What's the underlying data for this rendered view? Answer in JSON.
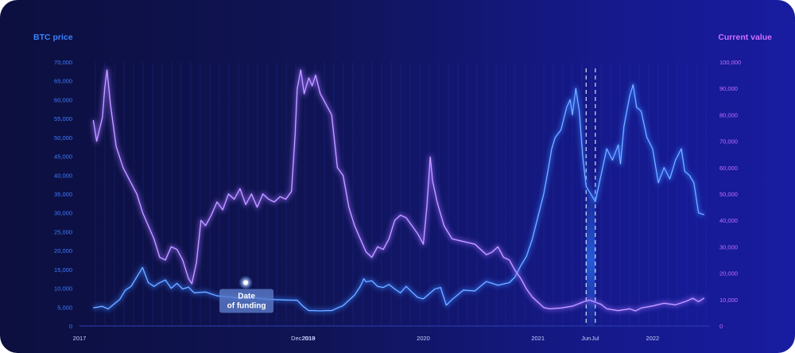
{
  "chart_data": {
    "type": "line",
    "left_axis": {
      "title": "BTC price",
      "ticks": [
        "0",
        "5,000",
        "10,000",
        "15,000",
        "20,000",
        "25,000",
        "30,000",
        "35,000",
        "40,000",
        "45,000",
        "50,000",
        "55,000",
        "60,000",
        "65,000",
        "70,000"
      ],
      "range": [
        0,
        70000
      ]
    },
    "right_axis": {
      "title": "Current value",
      "ticks": [
        "0",
        "10,000",
        "20,000",
        "30,000",
        "40,000",
        "50,000",
        "60,000",
        "70,000",
        "80,000",
        "90,000",
        "100,000"
      ],
      "range": [
        0,
        100000
      ]
    },
    "x_labels": [
      "2017",
      "Dec2018",
      "2019",
      "2020",
      "2021",
      "Jun",
      "Jul",
      "2022"
    ],
    "x_label_positions": [
      2017.0,
      2018.95,
      2019.0,
      2020.0,
      2021.0,
      2021.42,
      2021.5,
      2022.0
    ],
    "x_range": [
      2017.0,
      2022.5
    ],
    "annotation": {
      "label_line1": "Date",
      "label_line2": "of funding",
      "x": 2018.45,
      "y_btc": 11500
    },
    "highlight": {
      "from": 2021.42,
      "to": 2021.5
    },
    "series": [
      {
        "axis": "left",
        "color": "#3a83ff",
        "points": [
          [
            2017.12,
            4800
          ],
          [
            2017.2,
            5200
          ],
          [
            2017.25,
            4500
          ],
          [
            2017.3,
            5800
          ],
          [
            2017.35,
            7000
          ],
          [
            2017.4,
            9500
          ],
          [
            2017.45,
            10500
          ],
          [
            2017.5,
            13000
          ],
          [
            2017.55,
            15500
          ],
          [
            2017.6,
            11500
          ],
          [
            2017.65,
            10500
          ],
          [
            2017.7,
            11500
          ],
          [
            2017.75,
            12200
          ],
          [
            2017.8,
            10000
          ],
          [
            2017.85,
            11300
          ],
          [
            2017.9,
            9800
          ],
          [
            2017.95,
            10300
          ],
          [
            2018.0,
            8800
          ],
          [
            2018.1,
            9000
          ],
          [
            2018.2,
            8000
          ],
          [
            2018.3,
            7700
          ],
          [
            2018.4,
            7400
          ],
          [
            2018.5,
            7600
          ],
          [
            2018.6,
            7200
          ],
          [
            2018.7,
            7000
          ],
          [
            2018.8,
            6900
          ],
          [
            2018.9,
            6800
          ],
          [
            2018.95,
            5200
          ],
          [
            2019.0,
            4100
          ],
          [
            2019.1,
            4000
          ],
          [
            2019.2,
            4100
          ],
          [
            2019.3,
            5400
          ],
          [
            2019.4,
            8200
          ],
          [
            2019.45,
            10500
          ],
          [
            2019.48,
            12500
          ],
          [
            2019.5,
            11700
          ],
          [
            2019.55,
            12000
          ],
          [
            2019.6,
            10500
          ],
          [
            2019.65,
            10200
          ],
          [
            2019.7,
            11000
          ],
          [
            2019.75,
            9800
          ],
          [
            2019.8,
            8800
          ],
          [
            2019.85,
            10500
          ],
          [
            2019.9,
            9000
          ],
          [
            2019.95,
            7600
          ],
          [
            2020.0,
            7200
          ],
          [
            2020.1,
            9800
          ],
          [
            2020.15,
            10200
          ],
          [
            2020.2,
            5500
          ],
          [
            2020.25,
            7000
          ],
          [
            2020.35,
            9500
          ],
          [
            2020.45,
            9300
          ],
          [
            2020.55,
            11800
          ],
          [
            2020.65,
            10800
          ],
          [
            2020.75,
            11500
          ],
          [
            2020.8,
            13000
          ],
          [
            2020.85,
            16000
          ],
          [
            2020.9,
            18500
          ],
          [
            2020.95,
            23000
          ],
          [
            2021.0,
            29000
          ],
          [
            2021.05,
            35000
          ],
          [
            2021.08,
            40000
          ],
          [
            2021.12,
            47000
          ],
          [
            2021.15,
            50000
          ],
          [
            2021.2,
            52000
          ],
          [
            2021.25,
            58000
          ],
          [
            2021.28,
            60000
          ],
          [
            2021.3,
            56000
          ],
          [
            2021.33,
            63000
          ],
          [
            2021.36,
            57000
          ],
          [
            2021.39,
            45000
          ],
          [
            2021.42,
            37000
          ],
          [
            2021.46,
            35000
          ],
          [
            2021.5,
            33000
          ],
          [
            2021.55,
            40000
          ],
          [
            2021.6,
            47000
          ],
          [
            2021.65,
            44000
          ],
          [
            2021.7,
            48000
          ],
          [
            2021.72,
            43000
          ],
          [
            2021.75,
            53000
          ],
          [
            2021.8,
            61000
          ],
          [
            2021.83,
            64000
          ],
          [
            2021.86,
            58000
          ],
          [
            2021.9,
            57000
          ],
          [
            2021.95,
            50000
          ],
          [
            2022.0,
            47000
          ],
          [
            2022.05,
            38000
          ],
          [
            2022.1,
            42000
          ],
          [
            2022.15,
            39000
          ],
          [
            2022.2,
            44000
          ],
          [
            2022.25,
            47000
          ],
          [
            2022.28,
            41000
          ],
          [
            2022.32,
            40000
          ],
          [
            2022.36,
            38000
          ],
          [
            2022.4,
            30000
          ],
          [
            2022.45,
            29500
          ]
        ]
      },
      {
        "axis": "right",
        "color": "#a070ff",
        "points": [
          [
            2017.12,
            78000
          ],
          [
            2017.15,
            70000
          ],
          [
            2017.2,
            79000
          ],
          [
            2017.22,
            90000
          ],
          [
            2017.24,
            97000
          ],
          [
            2017.27,
            84000
          ],
          [
            2017.32,
            68000
          ],
          [
            2017.38,
            60000
          ],
          [
            2017.44,
            55000
          ],
          [
            2017.5,
            50000
          ],
          [
            2017.55,
            43000
          ],
          [
            2017.6,
            38000
          ],
          [
            2017.65,
            33000
          ],
          [
            2017.7,
            26000
          ],
          [
            2017.75,
            25000
          ],
          [
            2017.8,
            30000
          ],
          [
            2017.85,
            29000
          ],
          [
            2017.9,
            25000
          ],
          [
            2017.95,
            18000
          ],
          [
            2017.98,
            16000
          ],
          [
            2018.02,
            24000
          ],
          [
            2018.06,
            40000
          ],
          [
            2018.1,
            38000
          ],
          [
            2018.15,
            42000
          ],
          [
            2018.2,
            47000
          ],
          [
            2018.25,
            44000
          ],
          [
            2018.3,
            50000
          ],
          [
            2018.35,
            48000
          ],
          [
            2018.4,
            52000
          ],
          [
            2018.45,
            46000
          ],
          [
            2018.5,
            50000
          ],
          [
            2018.55,
            45000
          ],
          [
            2018.6,
            50000
          ],
          [
            2018.65,
            48000
          ],
          [
            2018.7,
            47000
          ],
          [
            2018.75,
            49000
          ],
          [
            2018.8,
            48000
          ],
          [
            2018.85,
            51000
          ],
          [
            2018.88,
            72000
          ],
          [
            2018.9,
            90000
          ],
          [
            2018.93,
            97000
          ],
          [
            2018.96,
            88000
          ],
          [
            2019.0,
            94000
          ],
          [
            2019.03,
            91000
          ],
          [
            2019.06,
            95000
          ],
          [
            2019.1,
            88000
          ],
          [
            2019.15,
            84000
          ],
          [
            2019.2,
            80000
          ],
          [
            2019.25,
            60000
          ],
          [
            2019.3,
            57000
          ],
          [
            2019.35,
            45000
          ],
          [
            2019.4,
            38000
          ],
          [
            2019.45,
            33000
          ],
          [
            2019.5,
            28000
          ],
          [
            2019.55,
            26000
          ],
          [
            2019.6,
            30000
          ],
          [
            2019.65,
            29000
          ],
          [
            2019.7,
            33000
          ],
          [
            2019.75,
            40000
          ],
          [
            2019.8,
            42000
          ],
          [
            2019.85,
            41000
          ],
          [
            2019.9,
            38000
          ],
          [
            2019.95,
            35000
          ],
          [
            2020.0,
            31000
          ],
          [
            2020.03,
            45000
          ],
          [
            2020.06,
            64000
          ],
          [
            2020.08,
            55000
          ],
          [
            2020.12,
            47000
          ],
          [
            2020.18,
            38000
          ],
          [
            2020.25,
            33000
          ],
          [
            2020.35,
            32000
          ],
          [
            2020.45,
            31000
          ],
          [
            2020.55,
            27000
          ],
          [
            2020.6,
            28000
          ],
          [
            2020.65,
            30000
          ],
          [
            2020.7,
            26000
          ],
          [
            2020.75,
            25000
          ],
          [
            2020.8,
            21000
          ],
          [
            2020.85,
            18000
          ],
          [
            2020.9,
            14000
          ],
          [
            2020.95,
            11000
          ],
          [
            2021.0,
            9000
          ],
          [
            2021.05,
            7000
          ],
          [
            2021.1,
            6500
          ],
          [
            2021.2,
            6800
          ],
          [
            2021.3,
            7500
          ],
          [
            2021.4,
            9200
          ],
          [
            2021.45,
            9800
          ],
          [
            2021.5,
            9000
          ],
          [
            2021.55,
            8200
          ],
          [
            2021.6,
            6500
          ],
          [
            2021.7,
            5800
          ],
          [
            2021.8,
            6500
          ],
          [
            2021.85,
            5700
          ],
          [
            2021.9,
            6800
          ],
          [
            2022.0,
            7600
          ],
          [
            2022.1,
            8600
          ],
          [
            2022.2,
            8000
          ],
          [
            2022.3,
            9500
          ],
          [
            2022.35,
            10500
          ],
          [
            2022.4,
            9200
          ],
          [
            2022.45,
            10600
          ]
        ]
      }
    ]
  }
}
